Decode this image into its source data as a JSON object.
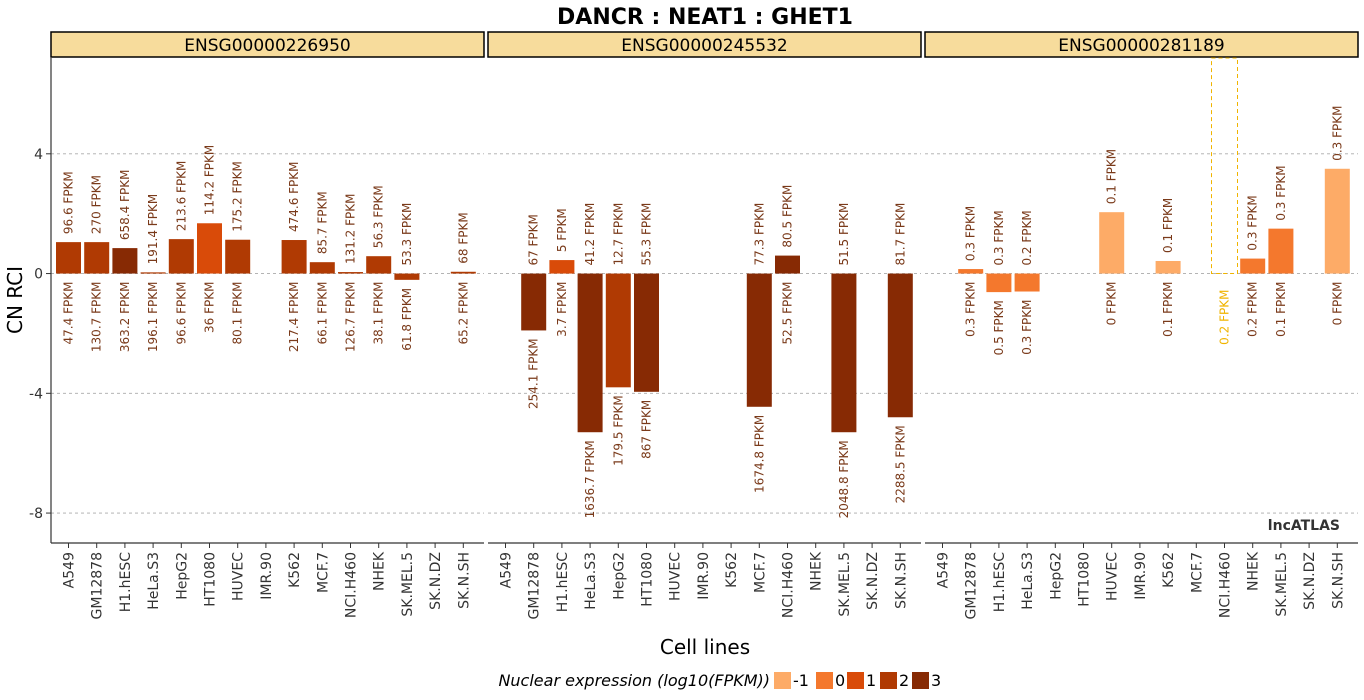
{
  "chart_data": {
    "type": "bar",
    "title": "DANCR : NEAT1 : GHET1",
    "xlabel": "Cell lines",
    "ylabel": "CN RCI",
    "ylim": [
      -9,
      7.2
    ],
    "yticks": [
      4,
      0,
      -4,
      -8
    ],
    "ytick_labels": [
      "4",
      "0",
      "-4",
      "-8"
    ],
    "grid": true,
    "watermark": "lncATLAS",
    "categories": [
      "A549",
      "GM12878",
      "H1.hESC",
      "HeLa.S3",
      "HepG2",
      "HT1080",
      "HUVEC",
      "IMR.90",
      "K562",
      "MCF.7",
      "NCI.H460",
      "NHEK",
      "SK.MEL.5",
      "SK.N.DZ",
      "SK.N.SH"
    ],
    "legend": {
      "title": "Nuclear expression (log10(FPKM))",
      "position": "bottom",
      "levels": [
        {
          "label": "-1",
          "color": "#fdab67"
        },
        {
          "label": "0",
          "color": "#f4782d"
        },
        {
          "label": "1",
          "color": "#d94b09"
        },
        {
          "label": "2",
          "color": "#b03a03"
        },
        {
          "label": "3",
          "color": "#872a04"
        }
      ]
    },
    "panels": [
      {
        "name": "ENSG00000226950",
        "bars": [
          {
            "cell": "A549",
            "value": 1.05,
            "level": 2,
            "top": "96.6 FPKM",
            "bottom": "47.4 FPKM"
          },
          {
            "cell": "GM12878",
            "value": 1.05,
            "level": 2,
            "top": "270 FPKM",
            "bottom": "130.7 FPKM"
          },
          {
            "cell": "H1.hESC",
            "value": 0.85,
            "level": 3,
            "top": "658.4 FPKM",
            "bottom": "363.2 FPKM"
          },
          {
            "cell": "HeLa.S3",
            "value": 0.04,
            "level": 2,
            "top": "191.4 FPKM",
            "bottom": "196.1 FPKM"
          },
          {
            "cell": "HepG2",
            "value": 1.15,
            "level": 2,
            "top": "213.6 FPKM",
            "bottom": "96.6 FPKM"
          },
          {
            "cell": "HT1080",
            "value": 1.68,
            "level": 1,
            "top": "114.2 FPKM",
            "bottom": "36 FPKM"
          },
          {
            "cell": "HUVEC",
            "value": 1.13,
            "level": 2,
            "top": "175.2 FPKM",
            "bottom": "80.1 FPKM"
          },
          {
            "cell": "K562",
            "value": 1.12,
            "level": 2,
            "top": "474.6 FPKM",
            "bottom": "217.4 FPKM"
          },
          {
            "cell": "MCF.7",
            "value": 0.38,
            "level": 2,
            "top": "85.7 FPKM",
            "bottom": "66.1 FPKM"
          },
          {
            "cell": "NCI.H460",
            "value": 0.05,
            "level": 2,
            "top": "131.2 FPKM",
            "bottom": "126.7 FPKM"
          },
          {
            "cell": "NHEK",
            "value": 0.58,
            "level": 2,
            "top": "56.3 FPKM",
            "bottom": "38.1 FPKM"
          },
          {
            "cell": "SK.MEL.5",
            "value": -0.21,
            "level": 2,
            "top": "53.3 FPKM",
            "bottom": "61.8 FPKM"
          },
          {
            "cell": "SK.N.SH",
            "value": 0.06,
            "level": 2,
            "top": "68 FPKM",
            "bottom": "65.2 FPKM"
          }
        ]
      },
      {
        "name": "ENSG00000245532",
        "bars": [
          {
            "cell": "GM12878",
            "value": -1.9,
            "level": 3,
            "top": "67 FPKM",
            "bottom": "254.1 FPKM"
          },
          {
            "cell": "H1.hESC",
            "value": 0.45,
            "level": 1,
            "top": "5 FPKM",
            "bottom": "3.7 FPKM"
          },
          {
            "cell": "HeLa.S3",
            "value": -5.3,
            "level": 3,
            "top": "41.2 FPKM",
            "bottom": "1636.7 FPKM"
          },
          {
            "cell": "HepG2",
            "value": -3.8,
            "level": 2,
            "top": "12.7 FPKM",
            "bottom": "179.5 FPKM"
          },
          {
            "cell": "HT1080",
            "value": -3.95,
            "level": 3,
            "top": "55.3 FPKM",
            "bottom": "867 FPKM"
          },
          {
            "cell": "MCF.7",
            "value": -4.45,
            "level": 3,
            "top": "77.3 FPKM",
            "bottom": "1674.8 FPKM"
          },
          {
            "cell": "NCI.H460",
            "value": 0.6,
            "level": 3,
            "top": "80.5 FPKM",
            "bottom": "52.5 FPKM"
          },
          {
            "cell": "SK.MEL.5",
            "value": -5.3,
            "level": 3,
            "top": "51.5 FPKM",
            "bottom": "2048.8 FPKM"
          },
          {
            "cell": "SK.N.SH",
            "value": -4.8,
            "level": 3,
            "top": "81.7 FPKM",
            "bottom": "2288.5 FPKM"
          }
        ]
      },
      {
        "name": "ENSG00000281189",
        "bars": [
          {
            "cell": "GM12878",
            "value": 0.15,
            "level": 0,
            "top": "0.3 FPKM",
            "bottom": "0.3 FPKM"
          },
          {
            "cell": "H1.hESC",
            "value": -0.62,
            "level": 0,
            "top": "0.3 FPKM",
            "bottom": "0.5 FPKM"
          },
          {
            "cell": "HeLa.S3",
            "value": -0.6,
            "level": 0,
            "top": "0.2 FPKM",
            "bottom": "0.3 FPKM"
          },
          {
            "cell": "HUVEC",
            "value": 2.05,
            "level": -1,
            "top": "0.1 FPKM",
            "bottom": "0 FPKM"
          },
          {
            "cell": "K562",
            "value": 0.42,
            "level": -1,
            "top": "0.1 FPKM",
            "bottom": "0.1 FPKM"
          },
          {
            "cell": "NCI.H460",
            "value": 7.2,
            "level": -1,
            "dashed": true,
            "top": "",
            "bottom": "0.2 FPKM"
          },
          {
            "cell": "NHEK",
            "value": 0.5,
            "level": 0,
            "top": "0.3 FPKM",
            "bottom": "0.2 FPKM"
          },
          {
            "cell": "SK.MEL.5",
            "value": 1.5,
            "level": 0,
            "top": "0.3 FPKM",
            "bottom": "0.1 FPKM"
          },
          {
            "cell": "SK.N.SH",
            "value": 3.5,
            "level": -1,
            "top": "0.3 FPKM",
            "bottom": "0 FPKM"
          }
        ]
      }
    ]
  }
}
